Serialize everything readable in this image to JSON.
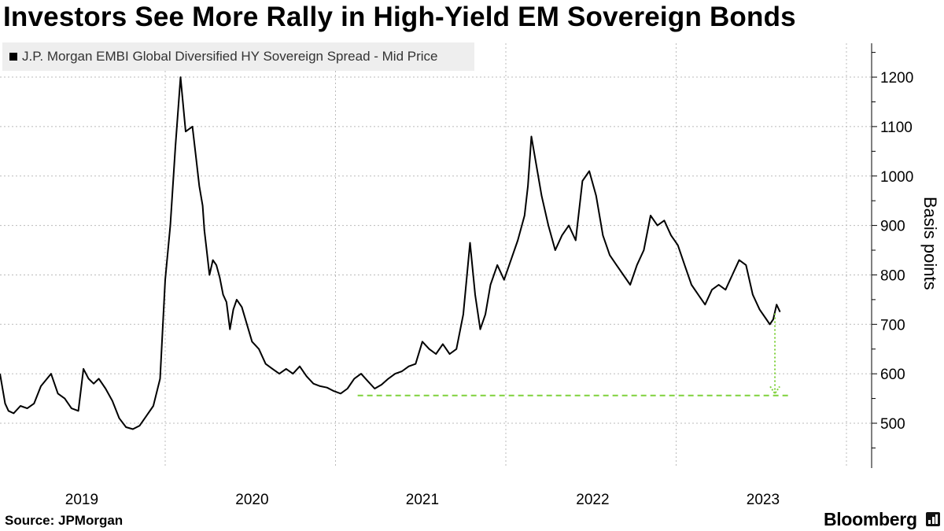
{
  "title": "Investors See More Rally in High-Yield EM Sovereign Bonds",
  "source": "Source: JPMorgan",
  "brand": "Bloomberg",
  "colors": {
    "line": "#000000",
    "grid": "#bbbbbb",
    "accent": "#7fd13b",
    "legend_bg": "#eeeeee"
  },
  "chart_data": {
    "type": "line",
    "title": "Investors See More Rally in High-Yield EM Sovereign Bonds",
    "ylabel": "Basis points",
    "xlabel": "",
    "ylim": [
      410,
      1300
    ],
    "y_ticks": [
      500,
      600,
      700,
      800,
      900,
      1000,
      1100,
      1200
    ],
    "x_ticks": [
      "2019",
      "2020",
      "2021",
      "2022",
      "2023"
    ],
    "grid": true,
    "legend_position": "top-left",
    "series": [
      {
        "name": "J.P. Morgan EMBI Global Diversified HY Sovereign Spread - Mid Price",
        "x": [
          2019.0,
          2019.03,
          2019.05,
          2019.08,
          2019.12,
          2019.16,
          2019.2,
          2019.24,
          2019.3,
          2019.34,
          2019.38,
          2019.42,
          2019.46,
          2019.49,
          2019.52,
          2019.55,
          2019.58,
          2019.62,
          2019.66,
          2019.7,
          2019.74,
          2019.78,
          2019.82,
          2019.86,
          2019.9,
          2019.94,
          2019.97,
          2020.0,
          2020.03,
          2020.06,
          2020.09,
          2020.13,
          2020.15,
          2020.17,
          2020.19,
          2020.2,
          2020.21,
          2020.23,
          2020.25,
          2020.27,
          2020.29,
          2020.31,
          2020.33,
          2020.35,
          2020.37,
          2020.39,
          2020.42,
          2020.45,
          2020.48,
          2020.52,
          2020.56,
          2020.6,
          2020.64,
          2020.68,
          2020.72,
          2020.76,
          2020.8,
          2020.84,
          2020.88,
          2020.92,
          2020.96,
          2021.0,
          2021.04,
          2021.08,
          2021.12,
          2021.16,
          2021.2,
          2021.24,
          2021.28,
          2021.32,
          2021.36,
          2021.4,
          2021.44,
          2021.48,
          2021.52,
          2021.56,
          2021.6,
          2021.64,
          2021.68,
          2021.72,
          2021.76,
          2021.79,
          2021.82,
          2021.85,
          2021.88,
          2021.92,
          2021.96,
          2022.0,
          2022.04,
          2022.08,
          2022.1,
          2022.12,
          2022.15,
          2022.18,
          2022.22,
          2022.26,
          2022.3,
          2022.34,
          2022.38,
          2022.42,
          2022.46,
          2022.5,
          2022.54,
          2022.58,
          2022.62,
          2022.66,
          2022.7,
          2022.74,
          2022.78,
          2022.82,
          2022.86,
          2022.9,
          2022.94,
          2022.98,
          2023.02,
          2023.06,
          2023.1,
          2023.14,
          2023.18,
          2023.22,
          2023.26,
          2023.3,
          2023.34,
          2023.38,
          2023.42,
          2023.46,
          2023.5,
          2023.52,
          2023.54,
          2023.56,
          2023.58
        ],
        "values": [
          600,
          540,
          525,
          520,
          535,
          530,
          540,
          575,
          600,
          560,
          550,
          530,
          525,
          610,
          590,
          580,
          590,
          570,
          545,
          510,
          492,
          488,
          495,
          515,
          535,
          590,
          790,
          900,
          1060,
          1200,
          1090,
          1100,
          1040,
          980,
          940,
          890,
          860,
          800,
          830,
          820,
          795,
          760,
          745,
          690,
          730,
          750,
          735,
          700,
          665,
          650,
          620,
          610,
          600,
          610,
          600,
          615,
          595,
          580,
          575,
          572,
          565,
          560,
          570,
          590,
          600,
          585,
          570,
          578,
          590,
          600,
          605,
          615,
          620,
          665,
          650,
          640,
          660,
          640,
          650,
          720,
          865,
          760,
          690,
          720,
          780,
          820,
          790,
          830,
          870,
          920,
          980,
          1080,
          1020,
          960,
          900,
          850,
          880,
          900,
          870,
          990,
          1010,
          960,
          880,
          840,
          820,
          800,
          780,
          820,
          850,
          920,
          900,
          910,
          880,
          860,
          820,
          780,
          760,
          740,
          770,
          780,
          770,
          800,
          830,
          820,
          760,
          730,
          710,
          700,
          710,
          740,
          725
        ]
      }
    ],
    "annotations": [
      {
        "type": "horizontal-line",
        "y": 556,
        "x_start": 2021.1,
        "x_end": 2023.63,
        "style": "dashed",
        "color": "#7fd13b"
      },
      {
        "type": "arrow",
        "x": 2023.55,
        "y_from": 722,
        "y_to": 560,
        "style": "dotted",
        "color": "#7fd13b"
      }
    ]
  }
}
